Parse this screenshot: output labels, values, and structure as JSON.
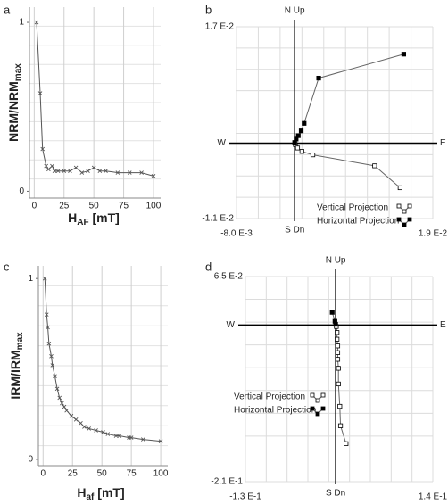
{
  "chart_data": [
    {
      "type": "line",
      "panel": "a",
      "ylabel": {
        "text": "NRM/NRM",
        "subscript": "max"
      },
      "xlabel": {
        "text": "H",
        "subscript": "AF",
        "suffix": " [mT]"
      },
      "x": [
        2,
        5,
        7,
        10,
        12,
        15,
        17,
        20,
        25,
        30,
        35,
        40,
        45,
        50,
        55,
        60,
        70,
        80,
        90,
        100
      ],
      "values": [
        1.0,
        0.58,
        0.25,
        0.15,
        0.13,
        0.15,
        0.12,
        0.12,
        0.12,
        0.12,
        0.14,
        0.11,
        0.12,
        0.14,
        0.12,
        0.12,
        0.11,
        0.11,
        0.11,
        0.09
      ],
      "color": "#555555",
      "marker": "x",
      "xlim": [
        -4,
        106
      ],
      "ylim": [
        -0.04,
        1.09
      ],
      "xticks": [
        0,
        25,
        50,
        75,
        100
      ],
      "yticks": [
        0,
        1
      ],
      "grid": true
    },
    {
      "type": "scatter",
      "panel": "b",
      "axis_labels": {
        "top": "N Up",
        "bottom": "S Dn",
        "left": "W",
        "right": "E"
      },
      "xlim": [
        -0.008,
        0.019
      ],
      "ylim": [
        -0.011,
        0.017
      ],
      "xticks": [
        {
          "value": -0.008,
          "label": "-8.0 E-3"
        },
        {
          "value": 0.019,
          "label": "1.9 E-2"
        }
      ],
      "yticks": [
        {
          "value": -0.011,
          "label": "-1.1 E-2"
        },
        {
          "value": 0.017,
          "label": "1.7 E-2"
        }
      ],
      "grid": true,
      "series": [
        {
          "name": "Vertical Projection",
          "color": "#000000",
          "marker": "open",
          "x": [
            0.0001,
            0.0004,
            0.001,
            0.0025,
            0.011,
            0.0145
          ],
          "values": [
            -0.0002,
            -0.0007,
            -0.0012,
            -0.0017,
            -0.0033,
            -0.0065
          ]
        },
        {
          "name": "Horizontal Projection",
          "color": "#000000",
          "marker": "filled",
          "x": [
            0,
            0.0002,
            0.0005,
            0.0009,
            0.0013,
            0.0033,
            0.015
          ],
          "values": [
            0.0001,
            0.0006,
            0.0011,
            0.0018,
            0.0029,
            0.0095,
            0.013
          ]
        }
      ]
    },
    {
      "type": "line",
      "panel": "c",
      "ylabel": {
        "text": "IRM/IRM",
        "subscript": "max"
      },
      "xlabel": {
        "text": "H",
        "subscript": "af",
        "suffix": " [mT]"
      },
      "x": [
        1.5,
        3,
        4,
        5,
        7,
        8,
        10,
        12,
        14,
        16,
        18,
        20,
        24,
        28,
        32,
        35,
        39,
        45,
        51,
        55,
        62,
        65,
        73,
        75,
        85,
        100
      ],
      "values": [
        1.0,
        0.8,
        0.73,
        0.64,
        0.57,
        0.52,
        0.46,
        0.39,
        0.34,
        0.31,
        0.29,
        0.27,
        0.24,
        0.22,
        0.2,
        0.18,
        0.17,
        0.16,
        0.15,
        0.14,
        0.13,
        0.13,
        0.12,
        0.12,
        0.11,
        0.1
      ],
      "color": "#555555",
      "marker": "x",
      "xlim": [
        -4,
        106
      ],
      "ylim": [
        -0.035,
        1.07
      ],
      "xticks": [
        0,
        25,
        50,
        75,
        100
      ],
      "yticks": [
        0,
        1
      ],
      "grid": true
    },
    {
      "type": "scatter",
      "panel": "d",
      "axis_labels": {
        "top": "N Up",
        "bottom": "S Dn",
        "left": "W",
        "right": "E"
      },
      "xlim": [
        -0.13,
        0.14
      ],
      "ylim": [
        -0.21,
        0.065
      ],
      "xticks": [
        {
          "value": -0.13,
          "label": "-1.3 E-1"
        },
        {
          "value": 0.14,
          "label": "1.4 E-1"
        }
      ],
      "yticks": [
        {
          "value": -0.21,
          "label": "-2.1 E-1"
        },
        {
          "value": 0.065,
          "label": "6.5 E-2"
        }
      ],
      "grid": true,
      "series": [
        {
          "name": "Vertical Projection",
          "color": "#000000",
          "marker": "open",
          "x": [
            0.001,
            0.002,
            0.002,
            0.003,
            0.003,
            0.003,
            0.004,
            0.004,
            0.006,
            0.007,
            0.015
          ],
          "values": [
            -0.002,
            -0.01,
            -0.019,
            -0.028,
            -0.037,
            -0.046,
            -0.058,
            -0.079,
            -0.109,
            -0.135,
            -0.159
          ]
        },
        {
          "name": "Horizontal Projection",
          "color": "#000000",
          "marker": "filled",
          "x": [
            -0.005,
            -0.001,
            0
          ],
          "values": [
            0.017,
            0.005,
            0.001
          ]
        }
      ]
    }
  ]
}
